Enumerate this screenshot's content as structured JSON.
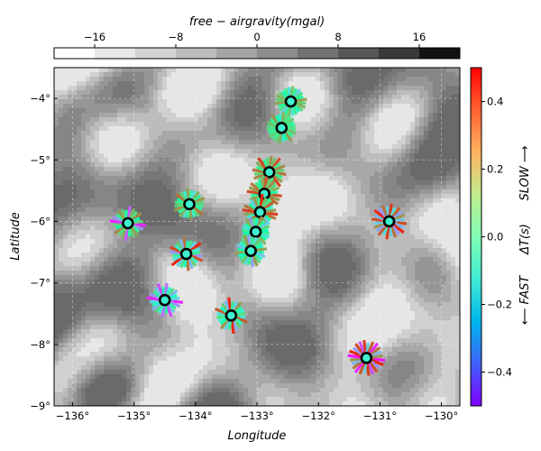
{
  "chart_data": {
    "type": "map",
    "xlabel": "Longitude",
    "ylabel": "Latitude",
    "xlim": [
      -136.3,
      -129.7
    ],
    "ylim": [
      -9.0,
      -3.5
    ],
    "x_ticks": [
      -136,
      -135,
      -134,
      -133,
      -132,
      -131,
      -130
    ],
    "x_tick_labels": [
      "−136°",
      "−135°",
      "−134°",
      "−133°",
      "−132°",
      "−131°",
      "−130°"
    ],
    "y_ticks": [
      -4,
      -5,
      -6,
      -7,
      -8,
      -9
    ],
    "y_tick_labels": [
      "−4°",
      "−5°",
      "−6°",
      "−7°",
      "−8°",
      "−9°"
    ],
    "grid": true,
    "background": {
      "title": "free − airgravity(mgal)",
      "range": [
        -20,
        20
      ],
      "levels": 10,
      "tick_values": [
        -16,
        -8,
        0,
        8,
        16
      ],
      "tick_labels": [
        "−16",
        "−8",
        "0",
        "8",
        "16"
      ],
      "colors": [
        "#ffffff",
        "#e9e9e9",
        "#d3d3d3",
        "#bdbdbd",
        "#a5a5a5",
        "#8d8d8d",
        "#737373",
        "#575757",
        "#3a3a3a",
        "#121212"
      ]
    },
    "colorbar": {
      "label": "ΔT(s)",
      "top_label": "SLOW ⟶",
      "bottom_label": "⟵ FAST",
      "range": [
        -0.5,
        0.5
      ],
      "tick_values": [
        0.4,
        0.2,
        0.0,
        -0.2,
        -0.4
      ],
      "tick_labels": [
        "0.4",
        "0.2",
        "0.0",
        "−0.2",
        "−0.4"
      ],
      "colormap": "rainbow"
    },
    "stations": [
      {
        "lon": -132.45,
        "lat": -4.05,
        "dts": [
          0.2,
          0.25,
          0.18,
          -0.05,
          0.12,
          -0.15,
          0.22,
          0.1,
          -0.2,
          0.15,
          0.05,
          0.28
        ]
      },
      {
        "lon": -132.6,
        "lat": -4.48,
        "dts": [
          0.15,
          0.22,
          0.1,
          0.3,
          0.05,
          -0.1,
          0.25,
          0.18,
          0.12,
          0.2,
          0.08,
          0.14
        ]
      },
      {
        "lon": -132.8,
        "lat": -5.2,
        "dts": [
          0.35,
          0.1,
          0.28,
          0.42,
          0.08,
          0.18,
          0.3,
          0.22,
          0.4,
          0.12,
          0.32,
          0.2
        ]
      },
      {
        "lon": -132.88,
        "lat": -5.55,
        "dts": [
          0.4,
          0.3,
          0.35,
          0.12,
          0.05,
          0.28,
          0.38,
          0.2,
          0.32,
          0.18,
          0.25,
          0.08
        ]
      },
      {
        "lon": -132.95,
        "lat": -5.85,
        "dts": [
          0.42,
          0.35,
          0.05,
          -0.2,
          0.3,
          0.1,
          0.45,
          0.22,
          0.15,
          0.38,
          -0.08,
          0.28
        ]
      },
      {
        "lon": -133.02,
        "lat": -6.17,
        "dts": [
          0.1,
          -0.15,
          0.05,
          0.25,
          -0.28,
          0.12,
          -0.05,
          0.3,
          0.08,
          -0.2,
          0.18,
          0.02
        ]
      },
      {
        "lon": -133.1,
        "lat": -6.48,
        "dts": [
          0.05,
          -0.22,
          -0.1,
          0.18,
          0.3,
          -0.28,
          0.12,
          -0.15,
          0.22,
          0.08,
          -0.05,
          0.28
        ]
      },
      {
        "lon": -134.1,
        "lat": -5.72,
        "dts": [
          0.15,
          0.05,
          0.35,
          0.2,
          -0.1,
          0.28,
          0.1,
          -0.15,
          0.25,
          0.08,
          0.3,
          0.18
        ]
      },
      {
        "lon": -135.1,
        "lat": -6.03,
        "dts": [
          -0.45,
          -0.3,
          0.1,
          0.28,
          0.2,
          0.05,
          -0.38,
          0.25,
          0.15,
          0.32,
          0.02,
          0.18
        ]
      },
      {
        "lon": -134.15,
        "lat": -6.53,
        "dts": [
          -0.3,
          0.4,
          -0.1,
          0.2,
          -0.25,
          0.35,
          -0.05,
          0.15,
          -0.2,
          0.45,
          -0.15,
          0.1
        ]
      },
      {
        "lon": -134.5,
        "lat": -7.28,
        "dts": [
          -0.45,
          -0.3,
          0.1,
          -0.2,
          -0.4,
          0.05,
          -0.35,
          -0.1,
          0.15,
          -0.25,
          -0.05,
          -0.18
        ]
      },
      {
        "lon": -133.42,
        "lat": -7.53,
        "dts": [
          -0.15,
          0.38,
          -0.05,
          0.2,
          -0.25,
          0.45,
          0.1,
          -0.2,
          0.3,
          0.05,
          -0.1,
          0.15
        ]
      },
      {
        "lon": -130.85,
        "lat": -6.0,
        "dts": [
          0.4,
          -0.25,
          0.45,
          -0.3,
          0.35,
          -0.2,
          0.42,
          -0.15,
          0.38,
          -0.28,
          0.3,
          -0.22
        ]
      },
      {
        "lon": -131.22,
        "lat": -8.22,
        "dts": [
          -0.48,
          0.45,
          -0.3,
          0.4,
          -0.4,
          0.42,
          -0.2,
          0.38,
          -0.45,
          0.35,
          -0.25,
          0.3
        ]
      }
    ]
  }
}
